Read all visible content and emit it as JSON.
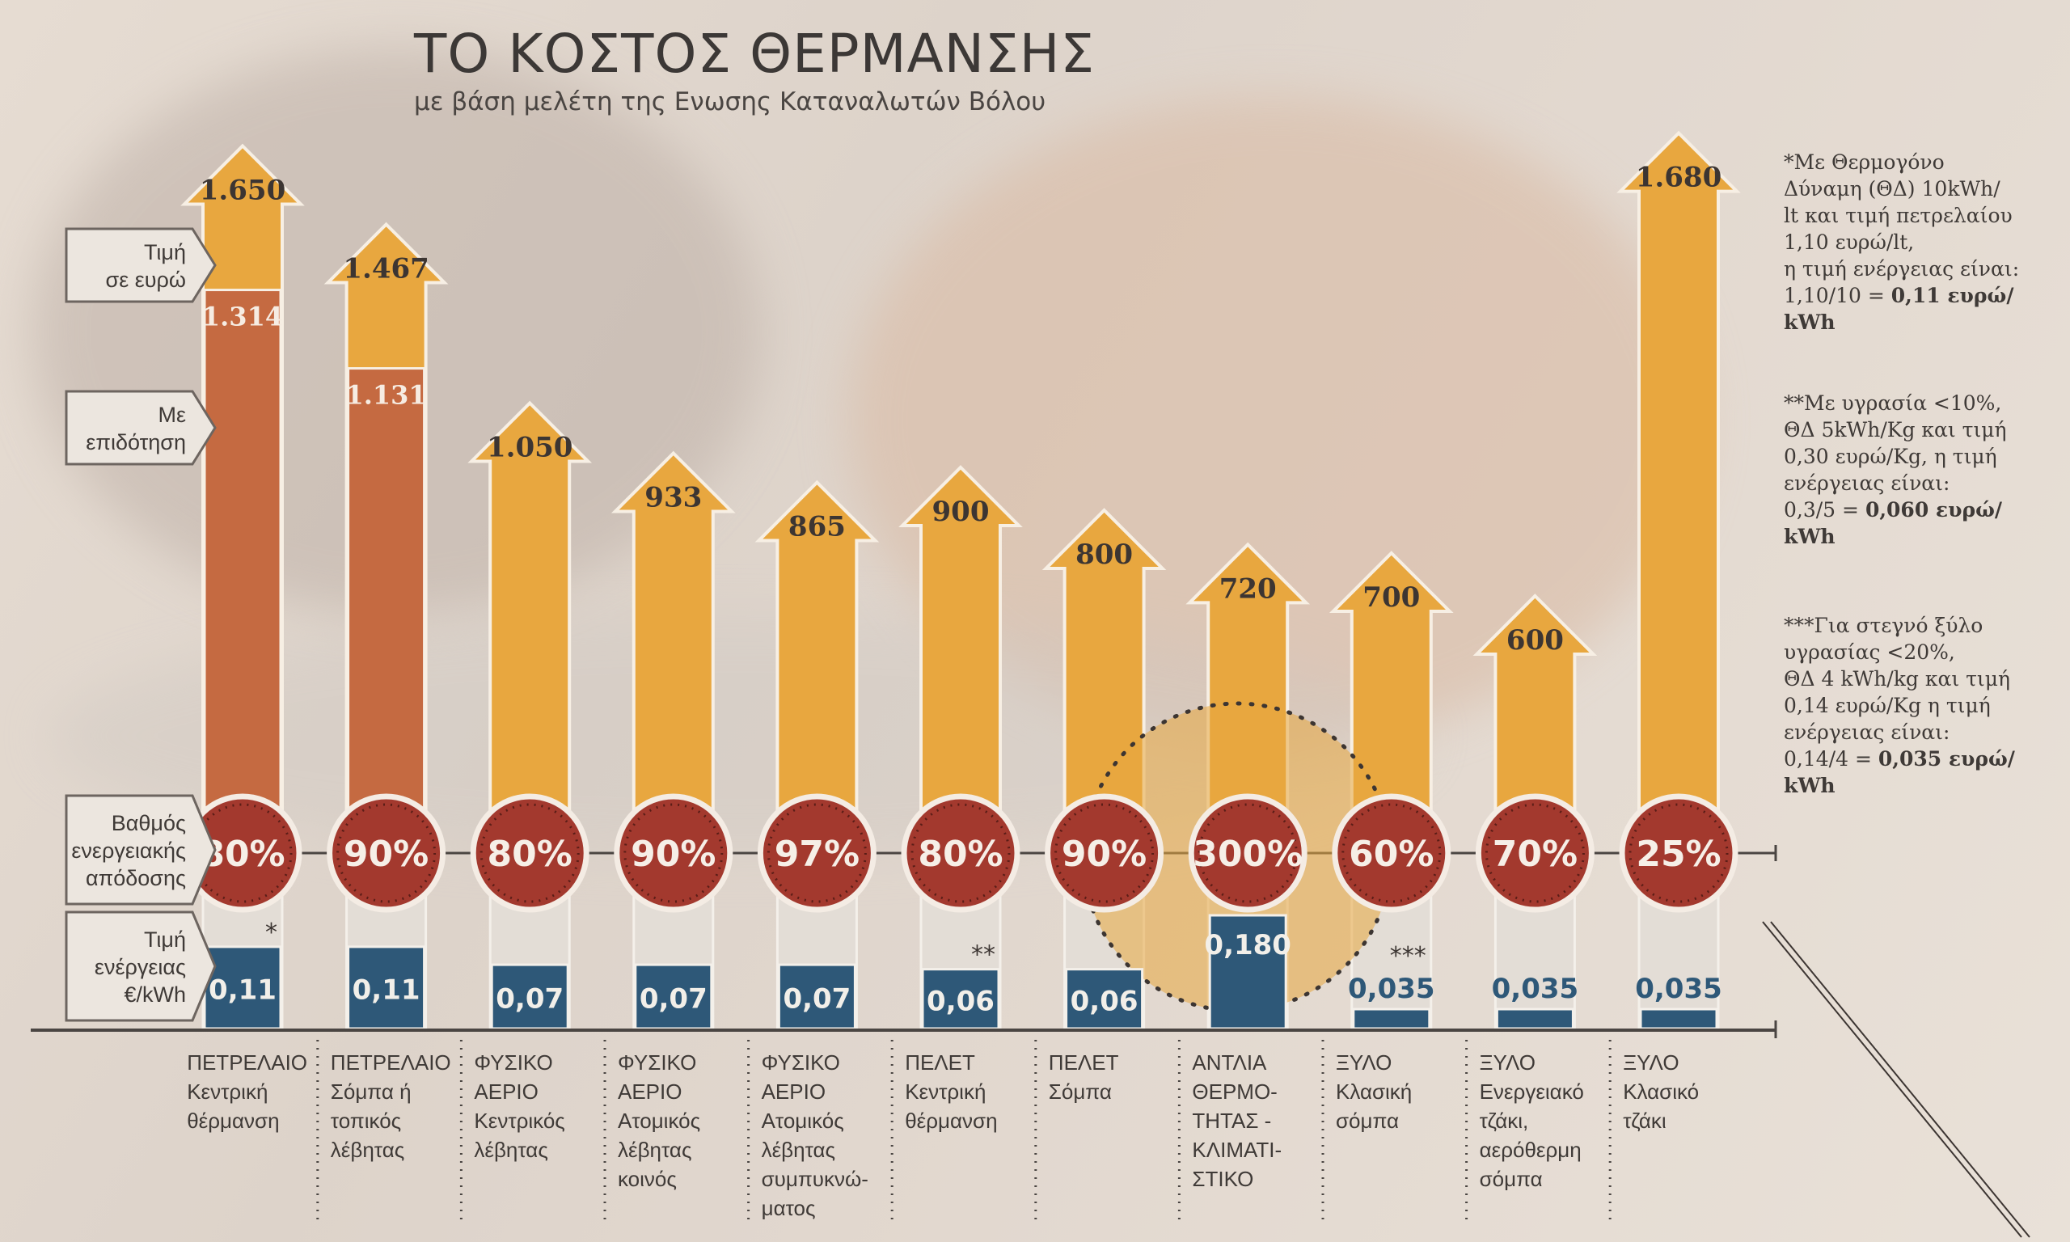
{
  "title": "ΤΟ ΚΟΣΤΟΣ ΘΕΡΜΑΝΣΗΣ",
  "subtitle": "με βάση μελέτη της Ενωσης Καταναλωτών Βόλου",
  "row_labels": {
    "price": [
      "Τιμή",
      "σε ευρώ"
    ],
    "subsidy": [
      "Με",
      "επιδότηση"
    ],
    "efficiency": [
      "Βαθμός",
      "ενεργειακής",
      "απόδοσης"
    ],
    "energy_price": [
      "Τιμή",
      "ενέργειας",
      "€/kWh"
    ]
  },
  "notes": [
    {
      "lines": [
        "*Με Θερμογόνο",
        "Δύναμη (ΘΔ) 10kWh/",
        "lt και τιμή πετρελαίου",
        "1,10 ευρώ/lt,",
        "η τιμή ενέργειας είναι:"
      ],
      "formula": "1,10/10 = ",
      "result": "0,11 ευρώ/",
      "unit": "kWh"
    },
    {
      "lines": [
        "**Με υγρασία <10%,",
        "ΘΔ 5kWh/Kg και τιμή",
        "0,30 ευρώ/Kg, η τιμή",
        "ενέργειας είναι:"
      ],
      "formula": "0,3/5 = ",
      "result": "0,060 ευρώ/",
      "unit": "kWh"
    },
    {
      "lines": [
        "***Για στεγνό ξύλο",
        "υγρασίας <20%,",
        "ΘΔ 4 kWh/kg και τιμή",
        " 0,14 ευρώ/Kg η τιμή",
        "ενέργειας είναι:"
      ],
      "formula": "0,14/4 = ",
      "result": "0,035 ευρώ/",
      "unit": "kWh"
    }
  ],
  "colors": {
    "arrow": "#e8a73f",
    "subsidy": "#c56a41",
    "circle": "#a3392e",
    "energy": "#2e5878",
    "text_dark": "#3c3836"
  },
  "chart_data": {
    "type": "bar",
    "title": "ΤΟ ΚΟΣΤΟΣ ΘΕΡΜΑΝΣΗΣ",
    "subtitle": "με βάση μελέτη της Ενωσης Καταναλωτών Βόλου",
    "categories": [
      "ΠΕΤΡΕΛΑΙΟ\nΚεντρική\nθέρμανση",
      "ΠΕΤΡΕΛΑΙΟ\nΣόμπα ή\nτοπικός\nλέβητας",
      "ΦΥΣΙΚΟ\nΑΕΡΙΟ\nΚεντρικός\nλέβητας",
      "ΦΥΣΙΚΟ\nΑΕΡΙΟ\nΑτομικός\nλέβητας\nκοινός",
      "ΦΥΣΙΚΟ\nΑΕΡΙΟ\nΑτομικός\nλέβητας\nσυμπυκνώ-\nματος",
      "ΠΕΛΕΤ\nΚεντρική\nθέρμανση",
      "ΠΕΛΕΤ\nΣόμπα",
      "ΑΝΤΛΙΑ\nΘΕΡΜΟ-\nΤΗΤΑΣ -\nΚΛΙΜΑΤΙ-\nΣΤΙΚΟ",
      "ΞΥΛΟ\nΚλασική\nσόμπα",
      "ΞΥΛΟ\nΕνεργειακό\nτζάκι,\nαερόθερμη\nσόμπα",
      "ΞΥΛΟ\nΚλασικό\nτζάκι"
    ],
    "series": [
      {
        "name": "Τιμή σε ευρώ",
        "values": [
          1650,
          1467,
          1050,
          933,
          865,
          900,
          800,
          720,
          700,
          600,
          1680
        ],
        "labels": [
          "1.650",
          "1.467",
          "1.050",
          "933",
          "865",
          "900",
          "800",
          "720",
          "700",
          "600",
          "1.680"
        ]
      },
      {
        "name": "Με επιδότηση",
        "values": [
          1314,
          1131,
          null,
          null,
          null,
          null,
          null,
          null,
          null,
          null,
          null
        ],
        "labels": [
          "1.314",
          "1.131",
          "",
          "",
          "",
          "",
          "",
          "",
          "",
          "",
          ""
        ]
      },
      {
        "name": "Βαθμός ενεργειακής απόδοσης (%)",
        "values": [
          80,
          90,
          80,
          90,
          97,
          80,
          90,
          300,
          60,
          70,
          25
        ],
        "labels": [
          "80%",
          "90%",
          "80%",
          "90%",
          "97%",
          "80%",
          "90%",
          "300%",
          "60%",
          "70%",
          "25%"
        ]
      },
      {
        "name": "Τιμή ενέργειας €/kWh",
        "values": [
          0.11,
          0.11,
          0.07,
          0.07,
          0.07,
          0.06,
          0.06,
          0.18,
          0.035,
          0.035,
          0.035
        ],
        "labels": [
          "0,11",
          "0,11",
          "0,07",
          "0,07",
          "0,07",
          "0,06",
          "0,06",
          "0,180",
          "0,035",
          "0,035",
          "0,035"
        ],
        "footnote_marks": [
          "*",
          "",
          "",
          "",
          "",
          "**",
          "",
          "",
          "***",
          "",
          ""
        ]
      }
    ],
    "xlabel": "",
    "ylabel": "Τιμή σε ευρώ",
    "ylim": [
      0,
      1700
    ],
    "highlight": "ΑΝΤΛΙΑ ΘΕΡΜΟΤΗΤΑΣ - ΚΛΙΜΑΤΙΣΤΙΚΟ",
    "grid": false
  }
}
